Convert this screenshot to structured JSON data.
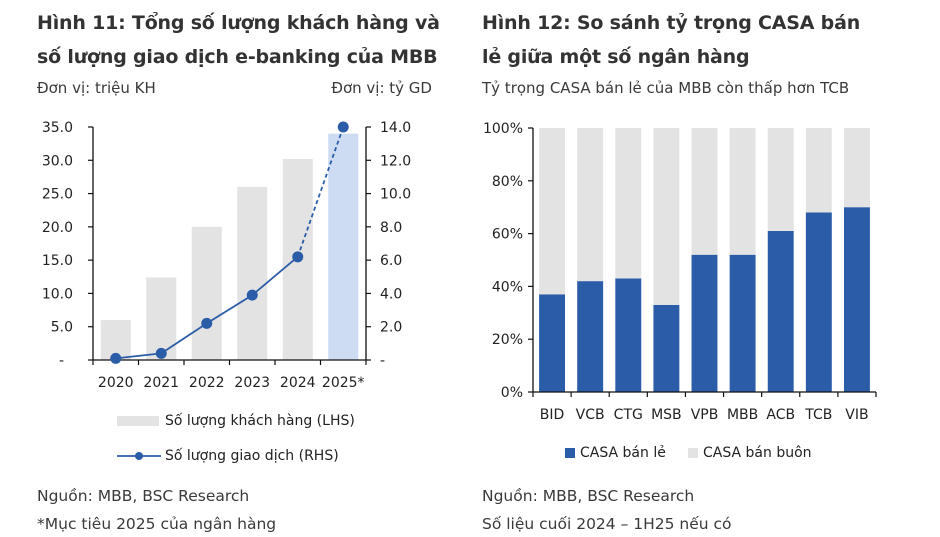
{
  "left_panel": {
    "title_line1": "Hình 11: Tổng số lượng khách hàng và",
    "title_line2": "số lượng giao dịch e-banking của MBB",
    "unit_left": "Đơn vị: triệu KH",
    "unit_right": "Đơn vị: tỷ GD",
    "source": "Nguồn: MBB, BSC Research",
    "footnote": "*Mục tiêu 2025 của ngân hàng"
  },
  "right_panel": {
    "title_line1": "Hình 12: So sánh tỷ trọng CASA bán",
    "title_line2": "lẻ giữa một số ngân hàng",
    "subtitle": "Tỷ trọng CASA bán lẻ của MBB còn thấp hơn TCB",
    "source": "Nguồn: MBB, BSC Research",
    "footnote": "Số liệu cuối 2024 – 1H25 nếu có"
  },
  "chart_data": [
    {
      "type": "bar+line",
      "title": "Hình 11: Tổng số lượng khách hàng và số lượng giao dịch e-banking của MBB",
      "categories": [
        "2020",
        "2021",
        "2022",
        "2023",
        "2024",
        "2025*"
      ],
      "series": [
        {
          "name": "Số lượng khách hàng (LHS)",
          "type": "bar",
          "axis": "left",
          "values": [
            6.0,
            12.4,
            20.0,
            26.0,
            30.2,
            34.0
          ],
          "color": "#e3e3e3",
          "highlight_color": "#cddcf2",
          "highlight_index": 5
        },
        {
          "name": "Số lượng giao dịch (RHS)",
          "type": "line",
          "axis": "right",
          "values": [
            0.1,
            0.4,
            2.2,
            3.9,
            6.2,
            14.0
          ],
          "color": "#2b5ca8",
          "dashed_from_index": 4
        }
      ],
      "y_left": {
        "label": "Đơn vị: triệu KH",
        "range": [
          0,
          35
        ],
        "ticks": [
          "-",
          "5.0",
          "10.0",
          "15.0",
          "20.0",
          "25.0",
          "30.0",
          "35.0"
        ]
      },
      "y_right": {
        "label": "Đơn vị: tỷ GD",
        "range": [
          0,
          14
        ],
        "ticks": [
          "-",
          "2.0",
          "4.0",
          "6.0",
          "8.0",
          "10.0",
          "12.0",
          "14.0"
        ]
      },
      "legend_position": "bottom",
      "grid": false
    },
    {
      "type": "bar",
      "stacked": true,
      "title": "Hình 12: So sánh tỷ trọng CASA bán lẻ giữa một số ngân hàng",
      "categories": [
        "BID",
        "VCB",
        "CTG",
        "MSB",
        "VPB",
        "MBB",
        "ACB",
        "TCB",
        "VIB"
      ],
      "series": [
        {
          "name": "CASA bán lẻ",
          "values": [
            37,
            42,
            43,
            33,
            52,
            52,
            61,
            68,
            70
          ],
          "color": "#2b5ca8"
        },
        {
          "name": "CASA bán buôn",
          "values": [
            63,
            58,
            57,
            67,
            48,
            48,
            39,
            32,
            30
          ],
          "color": "#e3e3e3"
        }
      ],
      "y": {
        "range": [
          0,
          100
        ],
        "unit": "%",
        "ticks": [
          "0%",
          "20%",
          "40%",
          "60%",
          "80%",
          "100%"
        ]
      },
      "legend_position": "bottom",
      "grid": false
    }
  ]
}
